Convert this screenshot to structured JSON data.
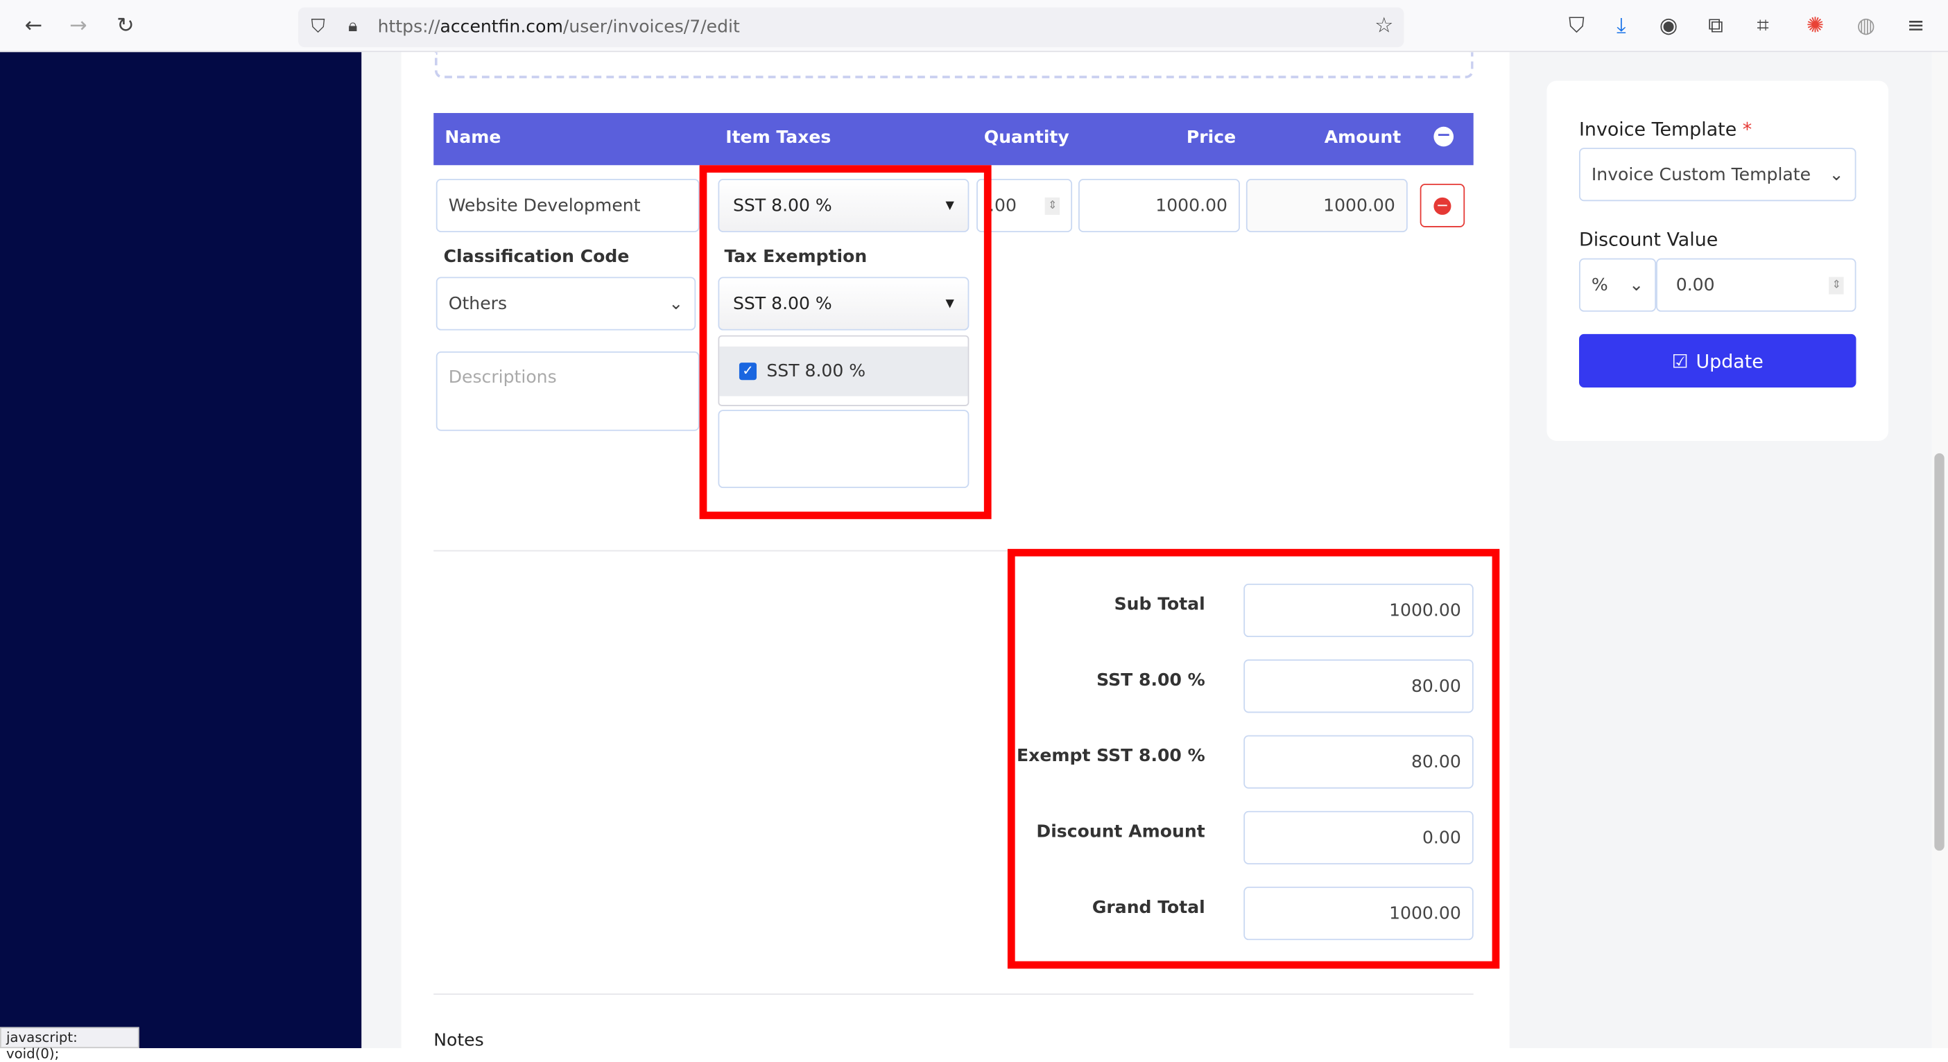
{
  "browser": {
    "url_prefix": "https://",
    "url_domain": "accentfin.com",
    "url_path": "/user/invoices/7/edit",
    "status_text": "javascript: void(0);"
  },
  "table": {
    "headers": [
      "Name",
      "Item Taxes",
      "Quantity",
      "Price",
      "Amount"
    ],
    "row": {
      "name": "Website Development",
      "item_tax": "SST 8.00 %",
      "quantity": ".00",
      "price": "1000.00",
      "amount": "1000.00"
    },
    "classification_label": "Classification Code",
    "classification_value": "Others",
    "tax_exemption_label": "Tax Exemption",
    "tax_exemption_value": "SST 8.00 %",
    "tax_exemption_option": "SST 8.00 %",
    "tax_exemption_option_checked": true,
    "descriptions_placeholder": "Descriptions"
  },
  "totals": [
    {
      "label": "Sub Total",
      "value": "1000.00"
    },
    {
      "label": "SST 8.00 %",
      "value": "80.00"
    },
    {
      "label": "Exempt SST 8.00 %",
      "value": "80.00"
    },
    {
      "label": "Discount Amount",
      "value": "0.00"
    },
    {
      "label": "Grand Total",
      "value": "1000.00"
    }
  ],
  "notes_label": "Notes",
  "sidepanel": {
    "template_label": "Invoice Template",
    "required_mark": "*",
    "template_value": "Invoice Custom Template",
    "discount_label": "Discount Value",
    "discount_type": "%",
    "discount_value": "0.00",
    "update_label": "Update"
  },
  "colors": {
    "header": "#5a5fdc",
    "sidebar": "#030a45",
    "highlight": "#ff0000",
    "button": "#3539f0"
  }
}
